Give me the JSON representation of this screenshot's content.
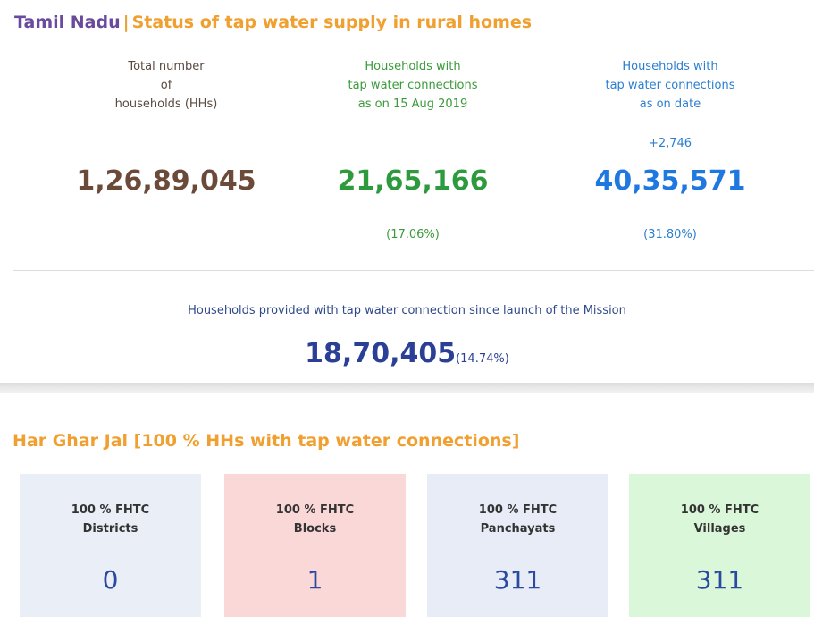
{
  "header": {
    "state": "Tamil Nadu",
    "separator": "|",
    "title": "Status of tap water supply in rural homes"
  },
  "stats": [
    {
      "label": [
        "Total number",
        "of",
        "households (HHs)"
      ],
      "value": "1,26,89,045"
    },
    {
      "label": [
        "Households with",
        "tap water connections",
        "as on 15 Aug 2019"
      ],
      "value": "21,65,166",
      "percent": "(17.06%)"
    },
    {
      "label": [
        "Households with",
        "tap water connections",
        "as on date"
      ],
      "change": "+2,746",
      "value": "40,35,571",
      "percent": "(31.80%)"
    }
  ],
  "mission": {
    "label": "Households provided with tap water connection since launch of the Mission",
    "value": "18,70,405",
    "percent": "(14.74%)"
  },
  "har_ghar_jal": {
    "title": "Har Ghar Jal [100 % HHs with tap water connections]",
    "cards": [
      {
        "label": [
          "100 % FHTC",
          "Districts"
        ],
        "value": "0"
      },
      {
        "label": [
          "100 % FHTC",
          "Blocks"
        ],
        "value": "1"
      },
      {
        "label": [
          "100 % FHTC",
          "Panchayats"
        ],
        "value": "311"
      },
      {
        "label": [
          "100 % FHTC",
          "Villages"
        ],
        "value": "311"
      }
    ]
  }
}
